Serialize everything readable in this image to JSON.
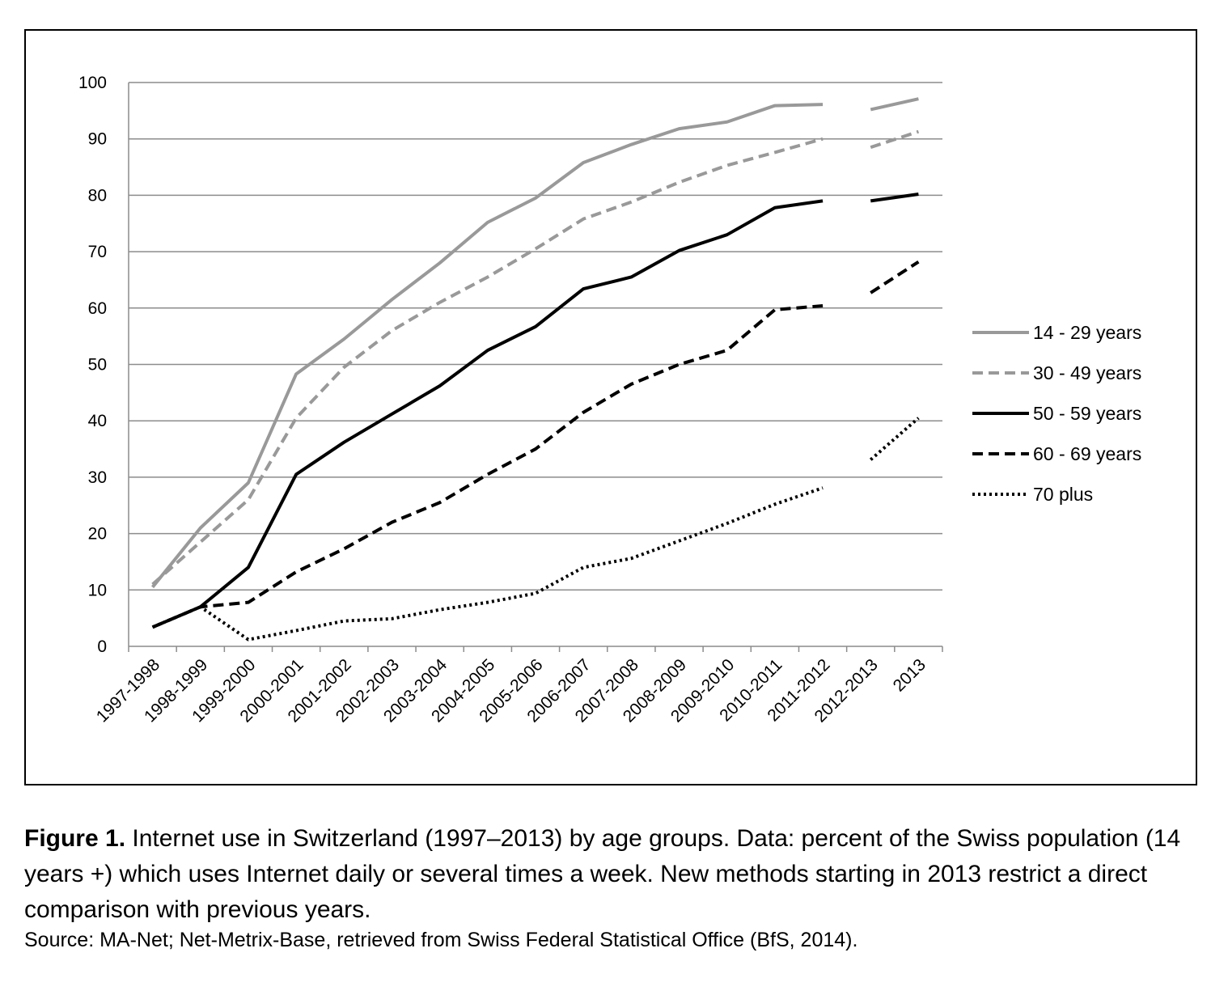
{
  "chart_data": {
    "type": "line",
    "title": "",
    "xlabel": "",
    "ylabel": "",
    "ylim": [
      0,
      100
    ],
    "yticks": [
      0,
      10,
      20,
      30,
      40,
      50,
      60,
      70,
      80,
      90,
      100
    ],
    "grid": true,
    "legend_position": "right",
    "categories": [
      "1997-1998",
      "1998-1999",
      "1999-2000",
      "2000-2001",
      "2001-2002",
      "2002-2003",
      "2003-2004",
      "2004-2005",
      "2005-2006",
      "2006-2007",
      "2007-2008",
      "2008-2009",
      "2009-2010",
      "2010-2011",
      "2011-2012",
      "2012-2013",
      "2013"
    ],
    "series": [
      {
        "name": "14 - 29 years",
        "color": "#999999",
        "dash": "solid",
        "values": [
          10.5,
          21,
          29,
          48.3,
          54.5,
          61.5,
          68,
          75.2,
          79.5,
          85.8,
          89,
          91.8,
          93,
          95.9,
          96.1,
          95.2,
          97.1
        ]
      },
      {
        "name": "30 - 49 years",
        "color": "#999999",
        "dash": "dashed",
        "values": [
          11,
          18.5,
          26,
          40.5,
          49.5,
          56,
          61,
          65.5,
          70.5,
          75.8,
          78.8,
          82.3,
          85.3,
          87.6,
          90,
          88.5,
          91.3
        ]
      },
      {
        "name": "50 - 59 years",
        "color": "#000000",
        "dash": "solid",
        "values": [
          3.4,
          7,
          14,
          30.5,
          36.2,
          41.2,
          46.2,
          52.5,
          56.7,
          63.4,
          65.5,
          70.2,
          73,
          77.8,
          79,
          79,
          80.2
        ]
      },
      {
        "name": "60 - 69 years",
        "color": "#000000",
        "dash": "dashed",
        "values": [
          3.4,
          7,
          7.8,
          13.2,
          17.3,
          22,
          25.5,
          30.5,
          35,
          41.5,
          46.5,
          50,
          52.5,
          59.7,
          60.4,
          62.7,
          68.2
        ]
      },
      {
        "name": "70 plus",
        "color": "#000000",
        "dash": "dotted",
        "values": [
          3.4,
          7,
          1.2,
          2.8,
          4.5,
          4.9,
          6.5,
          7.8,
          9.4,
          14,
          15.6,
          18.7,
          21.8,
          25.2,
          28.1,
          33.1,
          40.5
        ]
      }
    ],
    "break_before_category": "2012-2013"
  },
  "caption": {
    "label": "Figure 1.",
    "text": "Internet use in Switzerland (1997–2013) by age groups. Data: percent of the Swiss population (14 years +) which uses Internet daily or several times a week. New methods starting in 2013 restrict a direct comparison with previous years.",
    "source": "Source: MA-Net; Net-Metrix-Base, retrieved from Swiss Federal Statistical Office (BfS, 2014)."
  }
}
